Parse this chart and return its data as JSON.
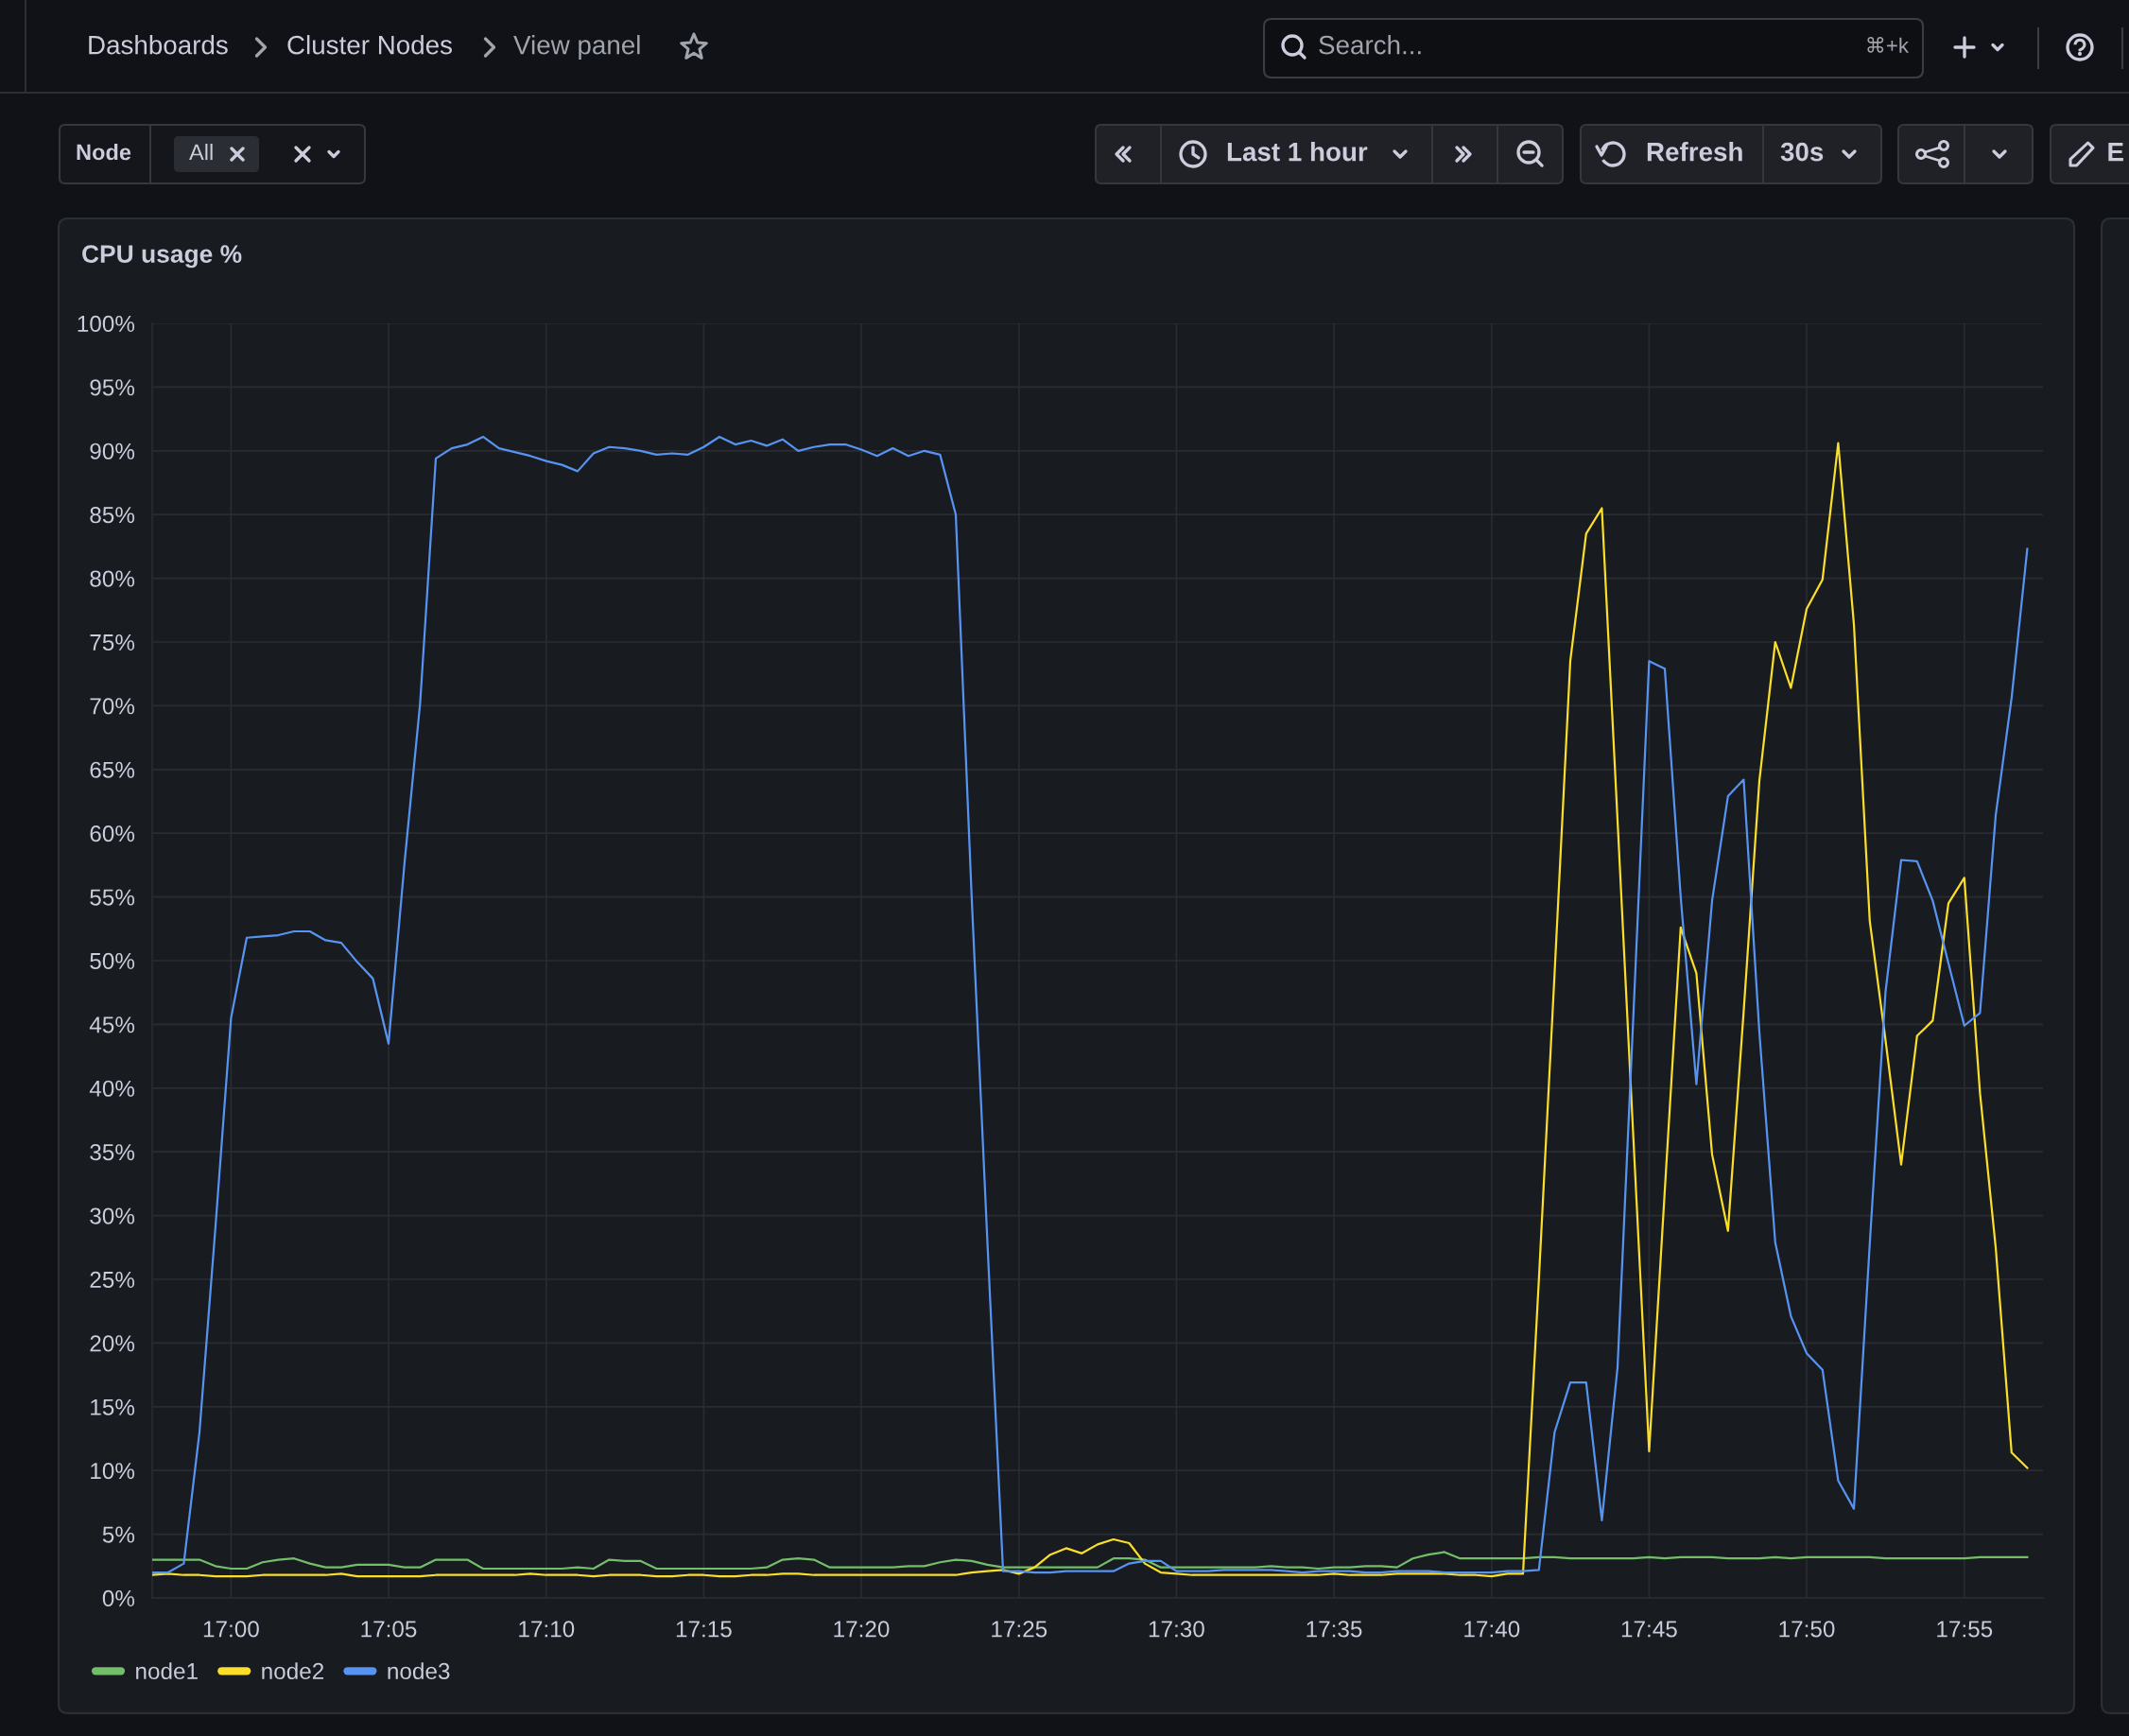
{
  "chart_data": {
    "type": "line",
    "title": "CPU usage %",
    "annotations": [
      "Dashboards",
      "Cluster Nodes",
      "View panel",
      "Search...",
      "⌘+k",
      "Node",
      "All",
      "Last 1 hour",
      "Refresh",
      "30s",
      "E"
    ],
    "x": [
      16.9583,
      16.9667,
      16.975,
      16.9833,
      16.9917,
      17,
      17.0083,
      17.0167,
      17.025,
      17.0333,
      17.0417,
      17.05,
      17.0583,
      17.0667,
      17.075,
      17.0833,
      17.0917,
      17.1,
      17.1083,
      17.1167,
      17.125,
      17.1333,
      17.1417,
      17.15,
      17.1583,
      17.1667,
      17.175,
      17.1833,
      17.1917,
      17.2,
      17.2083,
      17.2167,
      17.225,
      17.2333,
      17.2417,
      17.25,
      17.2583,
      17.2667,
      17.275,
      17.2833,
      17.2917,
      17.3,
      17.3083,
      17.3167,
      17.325,
      17.3333,
      17.3417,
      17.35,
      17.3583,
      17.3667,
      17.375,
      17.3833,
      17.3917,
      17.4,
      17.4083,
      17.4167,
      17.425,
      17.4333,
      17.4417,
      17.45,
      17.4583,
      17.4667,
      17.475,
      17.4833,
      17.4917,
      17.5,
      17.5083,
      17.5167,
      17.525,
      17.5333,
      17.5417,
      17.55,
      17.5583,
      17.5667,
      17.575,
      17.5833,
      17.5917,
      17.6,
      17.6083,
      17.6167,
      17.625,
      17.6333,
      17.6417,
      17.65,
      17.6583,
      17.6667,
      17.675,
      17.6833,
      17.6917,
      17.7,
      17.7083,
      17.7167,
      17.725,
      17.7333,
      17.7417,
      17.75,
      17.7583,
      17.7667,
      17.775,
      17.7833,
      17.7917,
      17.8,
      17.8083,
      17.8167,
      17.825,
      17.8333,
      17.8417,
      17.85,
      17.8583,
      17.8667,
      17.875,
      17.8833,
      17.8917,
      17.9,
      17.9083,
      17.9167,
      17.925,
      17.9333,
      17.9417,
      17.95
    ],
    "xlim": [
      16.9583,
      17.9583
    ],
    "xticks": [
      {
        "value": 17,
        "label": "17:00"
      },
      {
        "value": 17.0833,
        "label": "17:05"
      },
      {
        "value": 17.1667,
        "label": "17:10"
      },
      {
        "value": 17.25,
        "label": "17:15"
      },
      {
        "value": 17.3333,
        "label": "17:20"
      },
      {
        "value": 17.4167,
        "label": "17:25"
      },
      {
        "value": 17.5,
        "label": "17:30"
      },
      {
        "value": 17.5833,
        "label": "17:35"
      },
      {
        "value": 17.6667,
        "label": "17:40"
      },
      {
        "value": 17.75,
        "label": "17:45"
      },
      {
        "value": 17.8333,
        "label": "17:50"
      },
      {
        "value": 17.9167,
        "label": "17:55"
      }
    ],
    "ylim": [
      0,
      100
    ],
    "yticks": [
      {
        "value": 0,
        "label": "0%"
      },
      {
        "value": 5,
        "label": "5%"
      },
      {
        "value": 10,
        "label": "10%"
      },
      {
        "value": 15,
        "label": "15%"
      },
      {
        "value": 20,
        "label": "20%"
      },
      {
        "value": 25,
        "label": "25%"
      },
      {
        "value": 30,
        "label": "30%"
      },
      {
        "value": 35,
        "label": "35%"
      },
      {
        "value": 40,
        "label": "40%"
      },
      {
        "value": 45,
        "label": "45%"
      },
      {
        "value": 50,
        "label": "50%"
      },
      {
        "value": 55,
        "label": "55%"
      },
      {
        "value": 60,
        "label": "60%"
      },
      {
        "value": 65,
        "label": "65%"
      },
      {
        "value": 70,
        "label": "70%"
      },
      {
        "value": 75,
        "label": "75%"
      },
      {
        "value": 80,
        "label": "80%"
      },
      {
        "value": 85,
        "label": "85%"
      },
      {
        "value": 90,
        "label": "90%"
      },
      {
        "value": 95,
        "label": "95%"
      },
      {
        "value": 100,
        "label": "100%"
      }
    ],
    "grid": true,
    "legend": "bottom left",
    "line_style": "solid",
    "series": [
      {
        "name": "node1",
        "color": "#73bf69",
        "values": [
          3.0,
          3.0,
          3.0,
          3.0,
          2.5,
          2.3,
          2.3,
          2.8,
          3.0,
          3.1,
          2.7,
          2.4,
          2.4,
          2.6,
          2.6,
          2.6,
          2.4,
          2.4,
          3.0,
          3.0,
          3.0,
          2.3,
          2.3,
          2.3,
          2.3,
          2.3,
          2.3,
          2.4,
          2.3,
          3.0,
          2.9,
          2.9,
          2.3,
          2.3,
          2.3,
          2.3,
          2.3,
          2.3,
          2.3,
          2.4,
          3.0,
          3.1,
          3.0,
          2.4,
          2.4,
          2.4,
          2.4,
          2.4,
          2.5,
          2.5,
          2.8,
          3.0,
          2.9,
          2.6,
          2.4,
          2.4,
          2.4,
          2.4,
          2.4,
          2.4,
          2.4,
          3.1,
          3.1,
          3.0,
          2.4,
          2.4,
          2.4,
          2.4,
          2.4,
          2.4,
          2.4,
          2.5,
          2.4,
          2.4,
          2.3,
          2.4,
          2.4,
          2.5,
          2.5,
          2.4,
          3.1,
          3.4,
          3.6,
          3.1,
          3.1,
          3.1,
          3.1,
          3.1,
          3.2,
          3.2,
          3.1,
          3.1,
          3.1,
          3.1,
          3.1,
          3.2,
          3.1,
          3.2,
          3.2,
          3.2,
          3.1,
          3.1,
          3.1,
          3.2,
          3.1,
          3.2,
          3.2,
          3.2,
          3.2,
          3.2,
          3.1,
          3.1,
          3.1,
          3.1,
          3.1,
          3.1,
          3.2,
          3.2,
          3.2,
          3.2
        ]
      },
      {
        "name": "node2",
        "color": "#fade2a",
        "values": [
          1.8,
          1.9,
          1.8,
          1.8,
          1.7,
          1.7,
          1.7,
          1.8,
          1.8,
          1.8,
          1.8,
          1.8,
          1.9,
          1.7,
          1.7,
          1.7,
          1.7,
          1.7,
          1.8,
          1.8,
          1.8,
          1.8,
          1.8,
          1.8,
          1.9,
          1.8,
          1.8,
          1.8,
          1.7,
          1.8,
          1.8,
          1.8,
          1.7,
          1.7,
          1.8,
          1.8,
          1.7,
          1.7,
          1.8,
          1.8,
          1.9,
          1.9,
          1.8,
          1.8,
          1.8,
          1.8,
          1.8,
          1.8,
          1.8,
          1.8,
          1.8,
          1.8,
          2.0,
          2.1,
          2.2,
          1.9,
          2.4,
          3.4,
          3.9,
          3.5,
          4.2,
          4.6,
          4.3,
          2.7,
          2.0,
          1.9,
          1.8,
          1.8,
          1.8,
          1.8,
          1.8,
          1.8,
          1.8,
          1.8,
          1.8,
          1.9,
          1.8,
          1.8,
          1.8,
          1.9,
          1.9,
          1.9,
          1.9,
          1.8,
          1.8,
          1.7,
          1.9,
          1.9,
          25,
          49,
          73.5,
          83.5,
          85.5,
          61,
          36,
          11.5,
          32,
          52.6,
          49.0,
          34.8,
          28.8,
          46,
          64.1,
          75.0,
          71.4,
          77.6,
          79.9,
          90.6,
          76.4,
          53.1,
          43.8,
          34.0,
          44.1,
          45.3,
          54.5,
          56.5,
          39.6,
          27.5,
          11.4,
          10.2
        ]
      },
      {
        "name": "node3",
        "color": "#5794f2",
        "values": [
          2.0,
          2.0,
          2.7,
          13,
          29,
          45.5,
          51.8,
          51.9,
          52.0,
          52.3,
          52.3,
          51.6,
          51.4,
          49.9,
          48.6,
          43.5,
          57.6,
          70.2,
          89.4,
          90.2,
          90.5,
          91.1,
          90.2,
          89.9,
          89.6,
          89.2,
          88.9,
          88.4,
          89.8,
          90.3,
          90.2,
          90.0,
          89.7,
          89.8,
          89.7,
          90.3,
          91.1,
          90.5,
          90.8,
          90.4,
          90.9,
          90.0,
          90.3,
          90.5,
          90.5,
          90.1,
          89.6,
          90.2,
          89.6,
          90.0,
          89.7,
          85.0,
          55,
          28,
          2.1,
          2.1,
          2.0,
          2.0,
          2.1,
          2.1,
          2.1,
          2.1,
          2.7,
          2.9,
          2.9,
          2.1,
          2.1,
          2.1,
          2.2,
          2.2,
          2.2,
          2.2,
          2.1,
          2.0,
          2.1,
          2.1,
          2.1,
          2.0,
          2.0,
          2.1,
          2.1,
          2.1,
          2.0,
          2.0,
          2.0,
          2.0,
          2.1,
          2.1,
          2.2,
          13.0,
          16.9,
          16.9,
          6.1,
          18.1,
          45.8,
          73.5,
          72.9,
          55,
          40.3,
          54.7,
          62.9,
          64.2,
          44.4,
          27.9,
          22.1,
          19.2,
          17.9,
          9.2,
          7.0,
          27.8,
          47.5,
          57.9,
          57.8,
          54.7,
          49.8,
          44.9,
          45.9,
          61.4,
          70.6,
          82.3
        ]
      }
    ]
  }
}
